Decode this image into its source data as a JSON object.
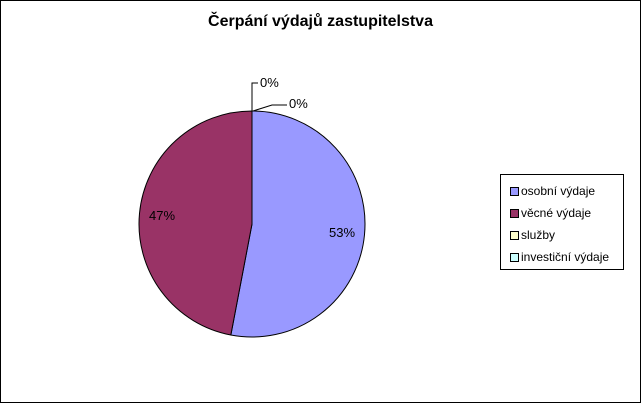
{
  "chart_data": {
    "type": "pie",
    "title": "Čerpání výdajů zastupitelstva",
    "slices": [
      {
        "name": "osobní výdaje",
        "value": 53,
        "label": "53%",
        "color": "#9999FF"
      },
      {
        "name": "věcné výdaje",
        "value": 47,
        "label": "47%",
        "color": "#993366"
      },
      {
        "name": "služby",
        "value": 0,
        "label": "0%",
        "color": "#FFFFCC"
      },
      {
        "name": "investiční výdaje",
        "value": 0,
        "label": "0%",
        "color": "#CCFFFF"
      }
    ],
    "legend_position": "right"
  }
}
